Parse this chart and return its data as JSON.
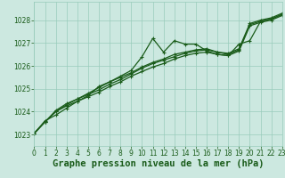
{
  "background_color": "#cce8e0",
  "grid_color": "#99ccbb",
  "line_color": "#1a5c1a",
  "title": "Graphe pression niveau de la mer (hPa)",
  "xlim": [
    0,
    23
  ],
  "ylim": [
    1022.5,
    1028.8
  ],
  "yticks": [
    1023,
    1024,
    1025,
    1026,
    1027,
    1028
  ],
  "xticks": [
    0,
    1,
    2,
    3,
    4,
    5,
    6,
    7,
    8,
    9,
    10,
    11,
    12,
    13,
    14,
    15,
    16,
    17,
    18,
    19,
    20,
    21,
    22,
    23
  ],
  "series": [
    {
      "x": [
        0,
        1,
        2,
        3,
        4,
        5,
        6,
        7,
        8,
        9,
        10,
        11,
        12,
        13,
        14,
        15,
        16,
        17,
        18,
        19,
        20,
        21,
        22,
        23
      ],
      "y": [
        1023.05,
        1023.6,
        1023.85,
        1024.15,
        1024.45,
        1024.7,
        1025.1,
        1025.3,
        1025.55,
        1025.8,
        1026.4,
        1027.2,
        1026.6,
        1027.1,
        1026.95,
        1026.95,
        1026.65,
        1026.5,
        1026.45,
        1026.95,
        1027.1,
        1027.95,
        1028.05,
        1028.25
      ]
    },
    {
      "x": [
        0,
        1,
        2,
        3,
        4,
        5,
        6,
        7,
        8,
        9,
        10,
        11,
        12,
        13,
        14,
        15,
        16,
        17,
        18,
        19,
        20,
        21,
        22,
        23
      ],
      "y": [
        1023.05,
        1023.55,
        1024.0,
        1024.3,
        1024.55,
        1024.75,
        1024.95,
        1025.2,
        1025.4,
        1025.65,
        1025.9,
        1026.1,
        1026.25,
        1026.4,
        1026.55,
        1026.65,
        1026.7,
        1026.6,
        1026.55,
        1026.75,
        1027.85,
        1028.0,
        1028.1,
        1028.3
      ]
    },
    {
      "x": [
        0,
        1,
        2,
        3,
        4,
        5,
        6,
        7,
        8,
        9,
        10,
        11,
        12,
        13,
        14,
        15,
        16,
        17,
        18,
        19,
        20,
        21,
        22,
        23
      ],
      "y": [
        1023.05,
        1023.55,
        1024.0,
        1024.25,
        1024.45,
        1024.65,
        1024.85,
        1025.1,
        1025.3,
        1025.55,
        1025.75,
        1025.95,
        1026.1,
        1026.3,
        1026.45,
        1026.55,
        1026.6,
        1026.5,
        1026.45,
        1026.65,
        1027.75,
        1027.9,
        1028.0,
        1028.2
      ]
    },
    {
      "x": [
        0,
        1,
        2,
        3,
        4,
        5,
        6,
        7,
        8,
        9,
        10,
        11,
        12,
        13,
        14,
        15,
        16,
        17,
        18,
        19,
        20,
        21,
        22,
        23
      ],
      "y": [
        1023.05,
        1023.55,
        1024.05,
        1024.35,
        1024.55,
        1024.8,
        1025.05,
        1025.3,
        1025.5,
        1025.7,
        1025.95,
        1026.15,
        1026.3,
        1026.5,
        1026.6,
        1026.7,
        1026.75,
        1026.6,
        1026.5,
        1026.7,
        1027.8,
        1027.95,
        1028.05,
        1028.25
      ]
    }
  ],
  "marker": "+",
  "markersize": 3.5,
  "linewidth": 0.9,
  "title_fontsize": 7.5,
  "tick_fontsize": 5.5
}
